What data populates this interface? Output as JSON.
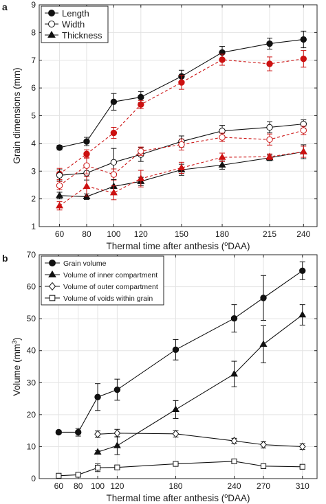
{
  "chart_data": [
    {
      "panel": "a",
      "type": "line",
      "xlabel": "Thermal time after anthesis (",
      "xlabel_sup": "o",
      "xlabel_tail": "DAA)",
      "ylabel": "Grain dimensions (mm)",
      "x": [
        60,
        80,
        100,
        120,
        150,
        180,
        215,
        240
      ],
      "xticks": [
        "60",
        "80",
        "100",
        "120",
        "150",
        "180",
        "215",
        "240"
      ],
      "xlim": [
        45,
        250
      ],
      "ylim": [
        1,
        9
      ],
      "yticks": [
        1,
        2,
        3,
        4,
        5,
        6,
        7,
        8,
        9
      ],
      "grid": true,
      "legend_position": "top-left",
      "legend": [
        {
          "label": "Length",
          "marker": "filled-circle"
        },
        {
          "label": "Width",
          "marker": "open-circle"
        },
        {
          "label": "Thickness",
          "marker": "filled-triangle"
        }
      ],
      "colors": {
        "black": "#111111",
        "red": "#cc1111"
      },
      "series": [
        {
          "measure": "Length",
          "color": "black",
          "dash": false,
          "marker": "filled-circle",
          "values": [
            3.85,
            4.07,
            5.5,
            5.67,
            6.42,
            7.28,
            7.6,
            7.75
          ],
          "errors": [
            0.08,
            0.15,
            0.3,
            0.2,
            0.22,
            0.22,
            0.2,
            0.3
          ]
        },
        {
          "measure": "Length",
          "color": "red",
          "dash": true,
          "marker": "filled-circle",
          "values": [
            2.9,
            3.62,
            4.38,
            5.4,
            6.2,
            7.02,
            6.87,
            7.05
          ],
          "errors": [
            0.2,
            0.15,
            0.2,
            0.15,
            0.25,
            0.2,
            0.25,
            0.3
          ]
        },
        {
          "measure": "Width",
          "color": "black",
          "dash": false,
          "marker": "open-circle",
          "values": [
            2.85,
            2.93,
            3.32,
            3.6,
            4.07,
            4.45,
            4.58,
            4.7
          ],
          "errors": [
            0.2,
            0.25,
            0.5,
            0.25,
            0.2,
            0.2,
            0.2,
            0.15
          ]
        },
        {
          "measure": "Width",
          "color": "red",
          "dash": true,
          "marker": "open-circle",
          "values": [
            2.48,
            3.2,
            2.88,
            3.72,
            3.96,
            4.22,
            4.14,
            4.47
          ],
          "errors": [
            0.15,
            0.3,
            0.2,
            0.15,
            0.2,
            0.15,
            0.2,
            0.15
          ]
        },
        {
          "measure": "Thickness",
          "color": "black",
          "dash": false,
          "marker": "filled-triangle",
          "values": [
            2.12,
            2.08,
            2.45,
            2.63,
            3.05,
            3.22,
            3.48,
            3.7
          ],
          "errors": [
            0.12,
            0.1,
            0.25,
            0.15,
            0.2,
            0.15,
            0.1,
            0.25
          ]
        },
        {
          "measure": "Thickness",
          "color": "red",
          "dash": true,
          "marker": "filled-triangle",
          "values": [
            1.75,
            2.45,
            2.22,
            2.73,
            3.12,
            3.5,
            3.52,
            3.7
          ],
          "errors": [
            0.15,
            0.35,
            0.25,
            0.3,
            0.2,
            0.15,
            0.1,
            0.2
          ]
        }
      ]
    },
    {
      "panel": "b",
      "type": "line",
      "xlabel": "Thermal time after anthesis (",
      "xlabel_sup": "o",
      "xlabel_tail": "DAA)",
      "ylabel": "Volume (mm",
      "ylabel_sup": "3",
      "ylabel_tail": ")",
      "xticks": [
        "60",
        "80",
        "100",
        "120",
        "180",
        "240",
        "270",
        "310"
      ],
      "xlim": [
        40,
        325
      ],
      "ylim": [
        0,
        70
      ],
      "yticks": [
        0,
        10,
        20,
        30,
        40,
        50,
        60,
        70
      ],
      "grid": true,
      "legend_position": "top-left",
      "legend": [
        {
          "label": "Grain volume",
          "marker": "filled-circle"
        },
        {
          "label": "Volume of inner compartment",
          "marker": "filled-triangle"
        },
        {
          "label": "Volume of outer compartment",
          "marker": "open-diamond"
        },
        {
          "label": "Volume of voids within grain",
          "marker": "open-square"
        }
      ],
      "series": [
        {
          "name": "Grain volume",
          "marker": "filled-circle",
          "x": [
            60,
            80,
            100,
            120,
            180,
            240,
            270,
            310
          ],
          "values": [
            14.5,
            14.5,
            25.5,
            27.8,
            40.3,
            50.1,
            56.5,
            65.0
          ],
          "errors": [
            0.5,
            1.2,
            4.2,
            3.3,
            3.2,
            4.3,
            7.0,
            2.8
          ]
        },
        {
          "name": "Volume of inner compartment",
          "marker": "filled-triangle",
          "x": [
            100,
            120,
            180,
            240,
            270,
            310
          ],
          "values": [
            8.3,
            10.3,
            21.6,
            32.7,
            42.0,
            51.2
          ],
          "errors": [
            0.4,
            2.8,
            2.8,
            4.0,
            5.8,
            3.2
          ]
        },
        {
          "name": "Volume of outer compartment",
          "marker": "open-diamond",
          "x": [
            100,
            120,
            180,
            240,
            270,
            310
          ],
          "values": [
            13.9,
            14.2,
            14.0,
            11.8,
            10.6,
            10.0
          ],
          "errors": [
            1.0,
            1.2,
            1.0,
            0.8,
            1.0,
            0.9
          ]
        },
        {
          "name": "Volume of voids within grain",
          "marker": "open-square",
          "x": [
            60,
            80,
            100,
            120,
            180,
            240,
            270,
            310
          ],
          "values": [
            0.9,
            1.2,
            3.4,
            3.5,
            4.6,
            5.4,
            3.9,
            3.7
          ],
          "errors": [
            0.2,
            0.3,
            1.2,
            0.5,
            0.6,
            0.6,
            0.7,
            0.5
          ]
        }
      ]
    }
  ],
  "panel_letters": [
    "a",
    "b"
  ]
}
